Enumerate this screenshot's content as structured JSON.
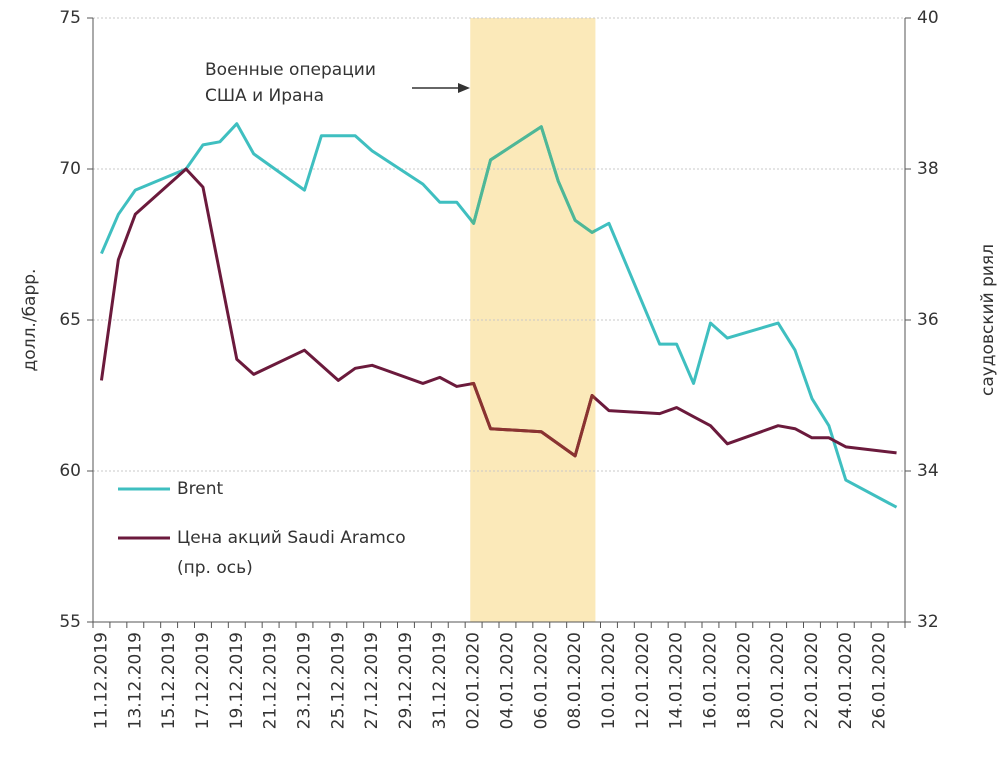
{
  "chart_data": {
    "type": "line",
    "x": [
      "11.12.2019",
      "12.12.2019",
      "13.12.2019",
      "14.12.2019",
      "15.12.2019",
      "16.12.2019",
      "17.12.2019",
      "18.12.2019",
      "19.12.2019",
      "20.12.2019",
      "21.12.2019",
      "22.12.2019",
      "23.12.2019",
      "24.12.2019",
      "25.12.2019",
      "26.12.2019",
      "27.12.2019",
      "28.12.2019",
      "29.12.2019",
      "30.12.2019",
      "31.12.2019",
      "01.01.2020",
      "02.01.2020",
      "03.01.2020",
      "04.01.2020",
      "05.01.2020",
      "06.01.2020",
      "07.01.2020",
      "08.01.2020",
      "09.01.2020",
      "10.01.2020",
      "11.01.2020",
      "12.01.2020",
      "13.01.2020",
      "14.01.2020",
      "15.01.2020",
      "16.01.2020",
      "17.01.2020",
      "18.01.2020",
      "19.01.2020",
      "20.01.2020",
      "21.01.2020",
      "22.01.2020",
      "23.01.2020",
      "24.01.2020",
      "25.01.2020",
      "26.01.2020",
      "27.01.2020"
    ],
    "xticks": [
      "11.12.2019",
      "13.12.2019",
      "15.12.2019",
      "17.12.2019",
      "19.12.2019",
      "21.12.2019",
      "23.12.2019",
      "25.12.2019",
      "27.12.2019",
      "29.12.2019",
      "31.12.2019",
      "02.01.2020",
      "04.01.2020",
      "06.01.2020",
      "08.01.2020",
      "10.01.2020",
      "12.01.2020",
      "14.01.2020",
      "16.01.2020",
      "18.01.2020",
      "20.01.2020",
      "22.01.2020",
      "24.01.2020",
      "26.01.2020"
    ],
    "span_gaps": true,
    "series": [
      {
        "name": [
          "Brent"
        ],
        "color": "#3fbfc0",
        "highlight_color": "#4fb796",
        "values": [
          67.2,
          68.5,
          69.3,
          null,
          null,
          70.0,
          70.8,
          70.9,
          71.5,
          70.5,
          null,
          null,
          69.3,
          71.1,
          null,
          71.1,
          70.6,
          null,
          null,
          69.5,
          68.9,
          68.9,
          68.2,
          70.3,
          null,
          null,
          71.4,
          69.6,
          68.3,
          67.9,
          68.2,
          null,
          null,
          64.2,
          64.2,
          62.9,
          64.9,
          64.4,
          null,
          null,
          64.9,
          64.0,
          62.4,
          61.5,
          59.7,
          null,
          null,
          58.8
        ]
      },
      {
        "name": [
          "Цена акций Saudi Aramco",
          "(пр. ось)"
        ],
        "color": "#6b1a3c",
        "highlight_color": "#8a3330",
        "axis": "y2",
        "values": [
          35.2,
          36.8,
          37.4,
          null,
          null,
          38.0,
          37.76,
          null,
          35.48,
          35.28,
          null,
          null,
          35.6,
          null,
          35.2,
          35.36,
          35.4,
          null,
          null,
          35.16,
          35.24,
          35.12,
          35.16,
          34.56,
          null,
          null,
          34.52,
          null,
          34.2,
          35.0,
          34.8,
          null,
          null,
          34.76,
          34.84,
          34.72,
          34.6,
          34.36,
          null,
          null,
          34.6,
          34.56,
          34.44,
          34.44,
          34.32,
          null,
          null,
          34.24
        ]
      }
    ],
    "ylim": [
      55,
      75
    ],
    "yticks": [
      55,
      60,
      65,
      70,
      75
    ],
    "y2lim": [
      32,
      40
    ],
    "y2ticks": [
      32,
      34,
      36,
      38,
      40
    ],
    "ylabel": "долл./барр.",
    "y2label": "саудовский риял",
    "grid": true,
    "legend": "lower left",
    "highlight": {
      "from": "02.01.2020",
      "to": "09.01.2020",
      "color": "#fbe9b9"
    },
    "annotation": [
      "Военные операции",
      "США и Ирана"
    ]
  }
}
